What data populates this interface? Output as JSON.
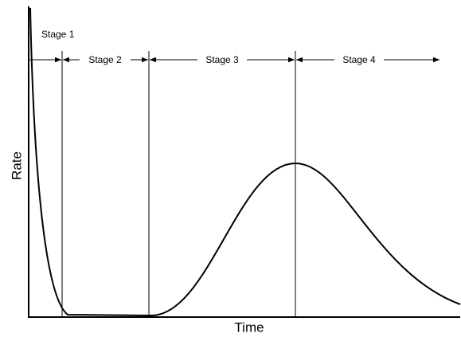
{
  "stages": [
    "Stage 1",
    "Stage 2",
    "Stage 3",
    "Stage 4"
  ],
  "y_axis_label": "Rate",
  "x_axis_label": "Time"
}
